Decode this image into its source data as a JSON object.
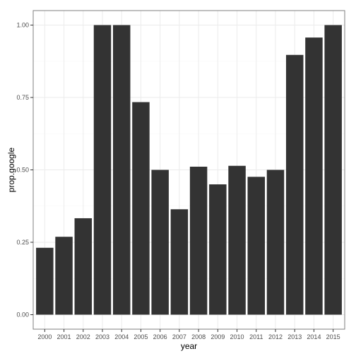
{
  "chart_data": {
    "type": "bar",
    "categories": [
      "2000",
      "2001",
      "2002",
      "2003",
      "2004",
      "2005",
      "2006",
      "2007",
      "2008",
      "2009",
      "2010",
      "2011",
      "2012",
      "2013",
      "2014",
      "2015"
    ],
    "values": [
      0.231,
      0.269,
      0.333,
      1.0,
      1.0,
      0.734,
      0.5,
      0.364,
      0.511,
      0.45,
      0.514,
      0.476,
      0.5,
      0.897,
      0.957,
      1.0
    ],
    "title": "",
    "xlabel": "year",
    "ylabel": "prop.google",
    "ylim": [
      0,
      1.0
    ],
    "yticks": [
      0.0,
      0.25,
      0.5,
      0.75,
      1.0
    ],
    "ytick_labels": [
      "0.00",
      "0.25",
      "0.50",
      "0.75",
      "1.00"
    ],
    "grid": true,
    "colors": {
      "bar": "#333333",
      "panel_border": "#7f7f7f",
      "grid_major": "#ebebeb",
      "grid_minor": "#f5f5f5"
    }
  }
}
